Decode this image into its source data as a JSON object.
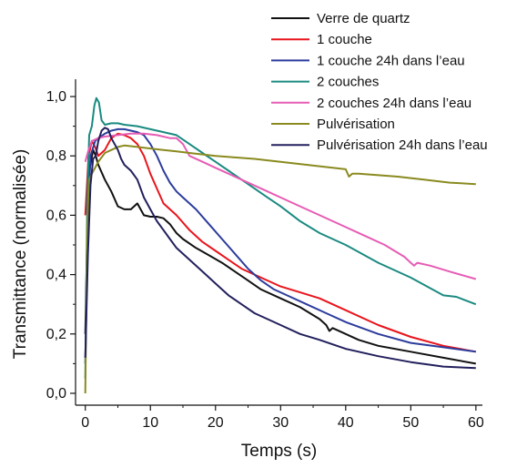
{
  "chart_data": {
    "type": "line",
    "title": "",
    "xlabel": "Temps (s)",
    "ylabel": "Transmittance (normalisée)",
    "xlim": [
      -1.5,
      61
    ],
    "ylim": [
      -0.04,
      1.04
    ],
    "xticks": [
      0,
      10,
      20,
      30,
      40,
      50,
      60
    ],
    "yticks": [
      0.0,
      0.2,
      0.4,
      0.6,
      0.8,
      1.0
    ],
    "xtick_labels": [
      "0",
      "10",
      "20",
      "30",
      "40",
      "50",
      "60"
    ],
    "ytick_labels": [
      "0,0",
      "0,2",
      "0,4",
      "0,6",
      "0,8",
      "1,0"
    ],
    "grid": false,
    "legend_position": "top-right",
    "series": [
      {
        "name": "Verre de quartz",
        "color": "#111111",
        "points": [
          [
            0,
            0.2
          ],
          [
            0.3,
            0.55
          ],
          [
            0.7,
            0.76
          ],
          [
            1.2,
            0.82
          ],
          [
            1.6,
            0.8
          ],
          [
            2,
            0.77
          ],
          [
            3,
            0.72
          ],
          [
            4,
            0.68
          ],
          [
            5,
            0.63
          ],
          [
            6,
            0.62
          ],
          [
            7,
            0.62
          ],
          [
            8,
            0.64
          ],
          [
            9,
            0.6
          ],
          [
            10,
            0.595
          ],
          [
            11,
            0.595
          ],
          [
            12,
            0.59
          ],
          [
            13,
            0.57
          ],
          [
            14,
            0.54
          ],
          [
            15,
            0.52
          ],
          [
            17,
            0.49
          ],
          [
            19,
            0.465
          ],
          [
            21,
            0.44
          ],
          [
            23,
            0.41
          ],
          [
            25,
            0.38
          ],
          [
            27,
            0.35
          ],
          [
            30,
            0.32
          ],
          [
            33,
            0.29
          ],
          [
            36,
            0.25
          ],
          [
            37,
            0.23
          ],
          [
            37.5,
            0.21
          ],
          [
            38,
            0.22
          ],
          [
            40,
            0.2
          ],
          [
            42,
            0.18
          ],
          [
            45,
            0.16
          ],
          [
            50,
            0.14
          ],
          [
            55,
            0.12
          ],
          [
            60,
            0.1
          ]
        ]
      },
      {
        "name": "1 couche",
        "color": "#e8141c",
        "points": [
          [
            0,
            0.6
          ],
          [
            0.5,
            0.8
          ],
          [
            1,
            0.85
          ],
          [
            1.5,
            0.83
          ],
          [
            2,
            0.8
          ],
          [
            3,
            0.82
          ],
          [
            4,
            0.86
          ],
          [
            5,
            0.875
          ],
          [
            6,
            0.87
          ],
          [
            7,
            0.86
          ],
          [
            8,
            0.84
          ],
          [
            9,
            0.8
          ],
          [
            10,
            0.74
          ],
          [
            11,
            0.69
          ],
          [
            12,
            0.64
          ],
          [
            14,
            0.6
          ],
          [
            16,
            0.55
          ],
          [
            18,
            0.51
          ],
          [
            20,
            0.48
          ],
          [
            22,
            0.45
          ],
          [
            24,
            0.42
          ],
          [
            27,
            0.39
          ],
          [
            30,
            0.36
          ],
          [
            33,
            0.34
          ],
          [
            36,
            0.32
          ],
          [
            40,
            0.28
          ],
          [
            45,
            0.23
          ],
          [
            50,
            0.19
          ],
          [
            55,
            0.16
          ],
          [
            60,
            0.14
          ]
        ]
      },
      {
        "name": "1 couche 24h dans l’eau",
        "color": "#2c3c9c",
        "points": [
          [
            0,
            0.1
          ],
          [
            0.4,
            0.6
          ],
          [
            0.8,
            0.8
          ],
          [
            1.5,
            0.85
          ],
          [
            2,
            0.86
          ],
          [
            3,
            0.875
          ],
          [
            4,
            0.885
          ],
          [
            5,
            0.89
          ],
          [
            6,
            0.89
          ],
          [
            7,
            0.885
          ],
          [
            8,
            0.88
          ],
          [
            9,
            0.87
          ],
          [
            10,
            0.84
          ],
          [
            11,
            0.8
          ],
          [
            12,
            0.75
          ],
          [
            13,
            0.71
          ],
          [
            14,
            0.68
          ],
          [
            15,
            0.66
          ],
          [
            17,
            0.62
          ],
          [
            19,
            0.57
          ],
          [
            21,
            0.52
          ],
          [
            23,
            0.47
          ],
          [
            25,
            0.42
          ],
          [
            27,
            0.38
          ],
          [
            29,
            0.35
          ],
          [
            31,
            0.33
          ],
          [
            34,
            0.3
          ],
          [
            37,
            0.27
          ],
          [
            40,
            0.24
          ],
          [
            45,
            0.2
          ],
          [
            50,
            0.17
          ],
          [
            55,
            0.155
          ],
          [
            60,
            0.14
          ]
        ]
      },
      {
        "name": "2 couches",
        "color": "#1a8a80",
        "points": [
          [
            0,
            0.05
          ],
          [
            0.3,
            0.65
          ],
          [
            0.6,
            0.87
          ],
          [
            1,
            0.9
          ],
          [
            1.4,
            0.97
          ],
          [
            1.7,
            0.995
          ],
          [
            2.1,
            0.98
          ],
          [
            2.5,
            0.92
          ],
          [
            3,
            0.905
          ],
          [
            4,
            0.91
          ],
          [
            5,
            0.91
          ],
          [
            6,
            0.905
          ],
          [
            8,
            0.9
          ],
          [
            10,
            0.89
          ],
          [
            12,
            0.88
          ],
          [
            14,
            0.87
          ],
          [
            16,
            0.84
          ],
          [
            18,
            0.81
          ],
          [
            20,
            0.78
          ],
          [
            22,
            0.75
          ],
          [
            24,
            0.72
          ],
          [
            26,
            0.69
          ],
          [
            28,
            0.66
          ],
          [
            30,
            0.63
          ],
          [
            33,
            0.58
          ],
          [
            36,
            0.54
          ],
          [
            40,
            0.5
          ],
          [
            45,
            0.44
          ],
          [
            50,
            0.39
          ],
          [
            55,
            0.33
          ],
          [
            57,
            0.325
          ],
          [
            60,
            0.3
          ]
        ]
      },
      {
        "name": "2 couches 24h dans l’eau",
        "color": "#e65cb4",
        "points": [
          [
            0,
            0.78
          ],
          [
            0.5,
            0.82
          ],
          [
            1,
            0.85
          ],
          [
            2,
            0.86
          ],
          [
            3,
            0.865
          ],
          [
            5,
            0.87
          ],
          [
            7,
            0.875
          ],
          [
            9,
            0.875
          ],
          [
            11,
            0.87
          ],
          [
            13,
            0.86
          ],
          [
            14,
            0.86
          ],
          [
            15,
            0.84
          ],
          [
            16,
            0.8
          ],
          [
            18,
            0.78
          ],
          [
            20,
            0.76
          ],
          [
            22,
            0.74
          ],
          [
            24,
            0.72
          ],
          [
            26,
            0.7
          ],
          [
            28,
            0.68
          ],
          [
            30,
            0.66
          ],
          [
            33,
            0.63
          ],
          [
            36,
            0.6
          ],
          [
            40,
            0.56
          ],
          [
            43,
            0.53
          ],
          [
            46,
            0.5
          ],
          [
            49,
            0.46
          ],
          [
            50,
            0.44
          ],
          [
            50.5,
            0.43
          ],
          [
            51,
            0.44
          ],
          [
            53,
            0.43
          ],
          [
            56,
            0.41
          ],
          [
            60,
            0.385
          ]
        ]
      },
      {
        "name": "Pulvérisation",
        "color": "#8a8a20",
        "points": [
          [
            0,
            0.0
          ],
          [
            0.3,
            0.55
          ],
          [
            0.6,
            0.72
          ],
          [
            1,
            0.74
          ],
          [
            1.5,
            0.76
          ],
          [
            2,
            0.78
          ],
          [
            3,
            0.81
          ],
          [
            4,
            0.82
          ],
          [
            5,
            0.83
          ],
          [
            6,
            0.835
          ],
          [
            8,
            0.83
          ],
          [
            10,
            0.825
          ],
          [
            12,
            0.82
          ],
          [
            14,
            0.815
          ],
          [
            16,
            0.81
          ],
          [
            18,
            0.805
          ],
          [
            20,
            0.8
          ],
          [
            23,
            0.795
          ],
          [
            26,
            0.79
          ],
          [
            30,
            0.78
          ],
          [
            34,
            0.77
          ],
          [
            38,
            0.76
          ],
          [
            40,
            0.755
          ],
          [
            40.5,
            0.73
          ],
          [
            41,
            0.74
          ],
          [
            42,
            0.74
          ],
          [
            45,
            0.735
          ],
          [
            48,
            0.73
          ],
          [
            52,
            0.72
          ],
          [
            56,
            0.71
          ],
          [
            60,
            0.705
          ]
        ]
      },
      {
        "name": "Pulvérisation 24h dans l’eau",
        "color": "#22205c",
        "points": [
          [
            0,
            0.12
          ],
          [
            0.4,
            0.47
          ],
          [
            0.8,
            0.7
          ],
          [
            1.2,
            0.79
          ],
          [
            1.6,
            0.8
          ],
          [
            2,
            0.85
          ],
          [
            2.5,
            0.885
          ],
          [
            3,
            0.895
          ],
          [
            3.5,
            0.89
          ],
          [
            4,
            0.86
          ],
          [
            4.5,
            0.84
          ],
          [
            5,
            0.82
          ],
          [
            5.5,
            0.79
          ],
          [
            6,
            0.77
          ],
          [
            7,
            0.75
          ],
          [
            8,
            0.72
          ],
          [
            9,
            0.66
          ],
          [
            10,
            0.62
          ],
          [
            11,
            0.58
          ],
          [
            12,
            0.55
          ],
          [
            13,
            0.52
          ],
          [
            14,
            0.49
          ],
          [
            16,
            0.45
          ],
          [
            18,
            0.41
          ],
          [
            20,
            0.37
          ],
          [
            22,
            0.33
          ],
          [
            24,
            0.3
          ],
          [
            26,
            0.27
          ],
          [
            28,
            0.25
          ],
          [
            30,
            0.23
          ],
          [
            33,
            0.2
          ],
          [
            36,
            0.18
          ],
          [
            40,
            0.15
          ],
          [
            45,
            0.125
          ],
          [
            50,
            0.105
          ],
          [
            55,
            0.09
          ],
          [
            60,
            0.085
          ]
        ]
      }
    ]
  }
}
